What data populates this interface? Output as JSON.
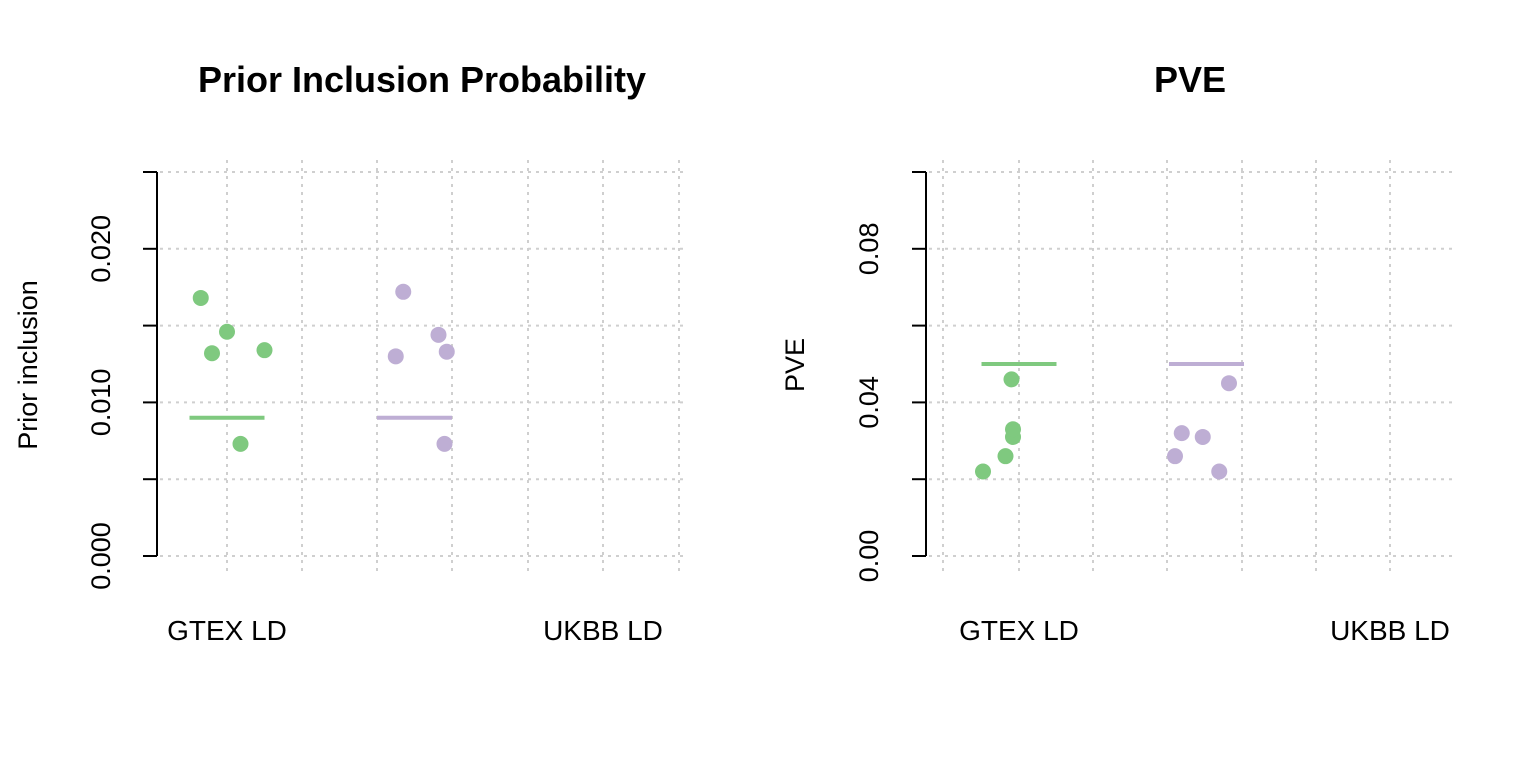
{
  "chart_data": [
    {
      "type": "scatter",
      "title": "Prior Inclusion Probability",
      "xlabel": "",
      "ylabel": "Prior inclusion",
      "categories": [
        "GTEX LD",
        "UKBB LD"
      ],
      "yticks": [
        "0.000",
        "0.010",
        "0.020"
      ],
      "ylim": [
        0,
        0.025
      ],
      "grid": true,
      "series": [
        {
          "color": "#7fc97f",
          "category": "GTEX LD",
          "points": [
            {
              "x": 0.65,
              "y": 0.0168
            },
            {
              "x": 0.8,
              "y": 0.0132
            },
            {
              "x": 1.0,
              "y": 0.0146
            },
            {
              "x": 1.18,
              "y": 0.0073
            },
            {
              "x": 1.5,
              "y": 0.0134
            }
          ],
          "line": {
            "x0": 0.5,
            "x1": 1.5,
            "y": 0.009
          }
        },
        {
          "color": "#beaed4",
          "category": "UKBB LD",
          "points": [
            {
              "x": 3.25,
              "y": 0.013
            },
            {
              "x": 3.35,
              "y": 0.0172
            },
            {
              "x": 3.82,
              "y": 0.0144
            },
            {
              "x": 3.9,
              "y": 0.0073
            },
            {
              "x": 3.93,
              "y": 0.0133
            }
          ],
          "line": {
            "x0": 3.0,
            "x1": 4.0,
            "y": 0.009
          }
        }
      ]
    },
    {
      "type": "scatter",
      "title": "PVE",
      "xlabel": "",
      "ylabel": "PVE",
      "categories": [
        "GTEX LD",
        "UKBB LD"
      ],
      "yticks": [
        "0.00",
        "0.04",
        "0.08"
      ],
      "ylim": [
        0,
        0.1
      ],
      "grid": true,
      "series": [
        {
          "color": "#7fc97f",
          "category": "GTEX LD",
          "points": [
            {
              "x": 0.52,
              "y": 0.022
            },
            {
              "x": 0.82,
              "y": 0.026
            },
            {
              "x": 0.9,
              "y": 0.046
            },
            {
              "x": 0.92,
              "y": 0.031
            },
            {
              "x": 0.92,
              "y": 0.033
            }
          ],
          "line": {
            "x0": 0.5,
            "x1": 1.5,
            "y": 0.05
          }
        },
        {
          "color": "#beaed4",
          "category": "UKBB LD",
          "points": [
            {
              "x": 3.08,
              "y": 0.026
            },
            {
              "x": 3.17,
              "y": 0.032
            },
            {
              "x": 3.45,
              "y": 0.031
            },
            {
              "x": 3.67,
              "y": 0.022
            },
            {
              "x": 3.8,
              "y": 0.045
            }
          ],
          "line": {
            "x0": 3.0,
            "x1": 4.0,
            "y": 0.05
          }
        }
      ]
    }
  ]
}
